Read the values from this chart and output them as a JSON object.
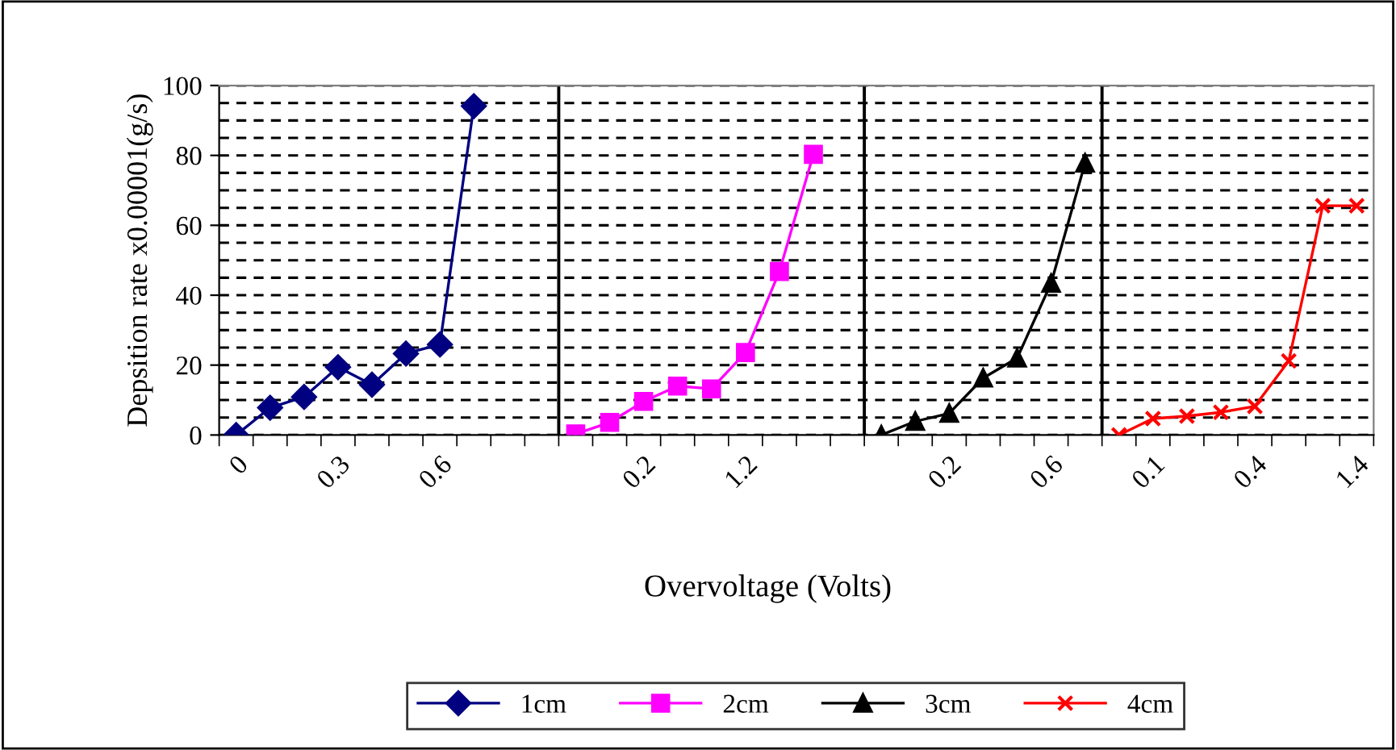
{
  "chart_data": {
    "type": "line",
    "xlabel": "Overvoltage (Volts)",
    "ylabel": "Depsition rate x0.00001(g/s)",
    "categories": [
      "0",
      null,
      null,
      "0.3",
      null,
      null,
      "0.6",
      null,
      null,
      null,
      null,
      null,
      "0.2",
      null,
      null,
      "1.2",
      null,
      null,
      null,
      null,
      null,
      "0.2",
      null,
      null,
      "0.6",
      null,
      null,
      "0.1",
      null,
      null,
      "0.4",
      null,
      null,
      "1.4"
    ],
    "series": [
      {
        "name": "1cm",
        "color": "#000080",
        "marker": "diamond",
        "values": [
          0,
          7.8,
          10.9,
          19.4,
          14.4,
          23.3,
          25.9,
          94.1,
          null,
          null,
          null,
          null,
          null,
          null,
          null,
          null,
          null,
          null,
          null,
          null,
          null,
          null,
          null,
          null,
          null,
          null,
          null,
          null,
          null,
          null,
          null,
          null,
          null,
          null
        ]
      },
      {
        "name": "2cm",
        "color": "#ff00ff",
        "marker": "square",
        "values": [
          null,
          null,
          null,
          null,
          null,
          null,
          null,
          null,
          null,
          null,
          0.3,
          3.6,
          9.6,
          14,
          13.2,
          23.6,
          46.8,
          80.3,
          null,
          null,
          null,
          null,
          null,
          null,
          null,
          null,
          null,
          null,
          null,
          null,
          null,
          null,
          null,
          null
        ]
      },
      {
        "name": "3cm",
        "color": "#000000",
        "marker": "triangle",
        "values": [
          null,
          null,
          null,
          null,
          null,
          null,
          null,
          null,
          null,
          null,
          null,
          null,
          null,
          null,
          null,
          null,
          null,
          null,
          null,
          0,
          3.9,
          6.2,
          16.3,
          22,
          43.4,
          77.8,
          null,
          null,
          null,
          null,
          null,
          null,
          null,
          null
        ]
      },
      {
        "name": "4cm",
        "color": "#ff0000",
        "marker": "cross",
        "values": [
          null,
          null,
          null,
          null,
          null,
          null,
          null,
          null,
          null,
          null,
          null,
          null,
          null,
          null,
          null,
          null,
          null,
          null,
          null,
          null,
          null,
          null,
          null,
          null,
          null,
          null,
          0,
          4.7,
          5.4,
          6.5,
          8.2,
          21.2,
          65.6,
          65.6
        ]
      }
    ],
    "ylim": [
      0,
      100
    ],
    "yticks": [
      0,
      {
        "value": 5,
        "label": null
      },
      {
        "value": 10,
        "label": null
      },
      {
        "value": 15,
        "label": null
      },
      20,
      {
        "value": 25,
        "label": null
      },
      {
        "value": 30,
        "label": null
      },
      {
        "value": 35,
        "label": null
      },
      40,
      {
        "value": 45,
        "label": null
      },
      {
        "value": 50,
        "label": null
      },
      {
        "value": 55,
        "label": null
      },
      60,
      {
        "value": 65,
        "label": null
      },
      {
        "value": 70,
        "label": null
      },
      {
        "value": 75,
        "label": null
      },
      80,
      {
        "value": 85,
        "label": null
      },
      {
        "value": 90,
        "label": null
      },
      {
        "value": 95,
        "label": null
      },
      100
    ],
    "grid": "y",
    "line_style": "solid",
    "legend": "bottom"
  }
}
